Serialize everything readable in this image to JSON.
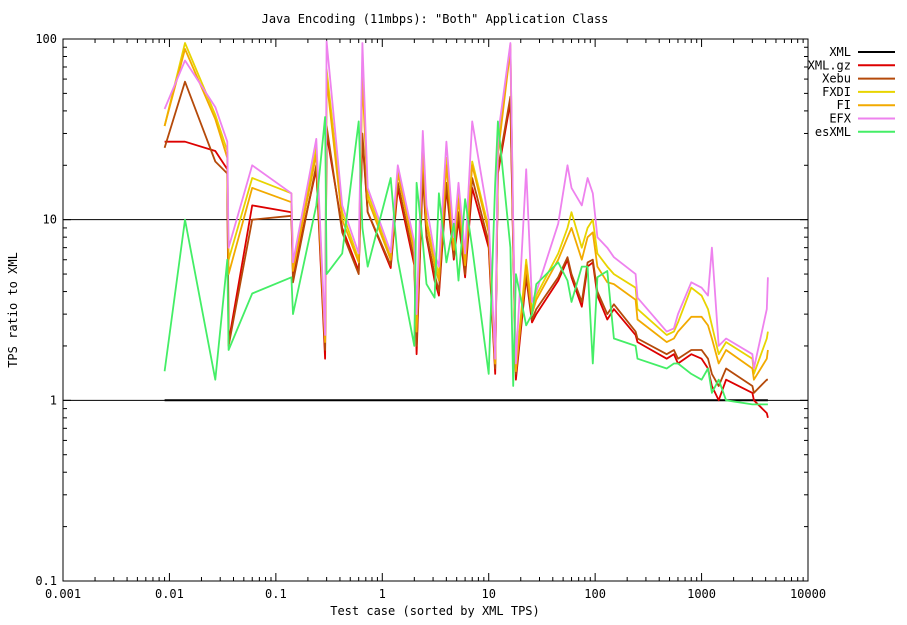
{
  "chart_data": {
    "type": "line",
    "title": "Java Encoding (11mbps): \"Both\" Application Class",
    "xlabel": "Test case (sorted by XML TPS)",
    "ylabel": "TPS ratio to XML",
    "xscale": "log",
    "yscale": "log",
    "xlim": [
      0.001,
      10000
    ],
    "ylim": [
      0.1,
      100
    ],
    "x_ticks": [
      0.001,
      0.01,
      0.1,
      1,
      10,
      100,
      1000,
      10000
    ],
    "x_tick_labels": [
      "0.001",
      "0.01",
      "0.1",
      "1",
      "10",
      "100",
      "1000",
      "10000"
    ],
    "y_ticks": [
      0.1,
      1,
      10,
      100
    ],
    "y_tick_labels": [
      "0.1",
      "1",
      "10",
      "100"
    ],
    "reference_lines_y": [
      1,
      10
    ],
    "legend_position": "outside-right",
    "x": [
      0.009,
      0.014,
      0.027,
      0.035,
      0.036,
      0.06,
      0.14,
      0.145,
      0.24,
      0.29,
      0.3,
      0.42,
      0.6,
      0.65,
      0.73,
      1.2,
      1.4,
      2.0,
      2.1,
      2.4,
      2.6,
      3.1,
      3.4,
      4.0,
      4.7,
      5.2,
      6.0,
      7.0,
      10,
      11.5,
      12.2,
      16,
      17,
      18,
      22.5,
      25.5,
      28,
      45,
      55,
      60,
      75,
      85,
      95,
      105,
      130,
      150,
      240,
      250,
      470,
      550,
      600,
      800,
      1000,
      1150,
      1250,
      1450,
      1700,
      3000,
      3100,
      4100,
      4200
    ],
    "series": [
      {
        "name": "XML",
        "color": "#000000",
        "values": [
          1,
          1,
          1,
          1,
          1,
          1,
          1,
          1,
          1,
          1,
          1,
          1,
          1,
          1,
          1,
          1,
          1,
          1,
          1,
          1,
          1,
          1,
          1,
          1,
          1,
          1,
          1,
          1,
          1,
          1,
          1,
          1,
          1,
          1,
          1,
          1,
          1,
          1,
          1,
          1,
          1,
          1,
          1,
          1,
          1,
          1,
          1,
          1,
          1,
          1,
          1,
          1,
          1,
          1,
          1,
          1,
          1,
          1,
          1,
          1,
          1
        ]
      },
      {
        "name": "XML.gz",
        "color": "#dd0000",
        "values": [
          27,
          27,
          24,
          19,
          2.1,
          12,
          11,
          5,
          19,
          1.7,
          30,
          9,
          5.2,
          28,
          11,
          5.4,
          15,
          5.6,
          1.8,
          18,
          8,
          4.6,
          3.8,
          15,
          6,
          10,
          4.8,
          15,
          7,
          1.4,
          18,
          45,
          7,
          1.3,
          4.8,
          2.7,
          3,
          4.6,
          6,
          4.8,
          3.3,
          5.5,
          5.8,
          3.8,
          2.8,
          3.2,
          2.3,
          2.1,
          1.7,
          1.8,
          1.6,
          1.8,
          1.7,
          1.5,
          1.2,
          1.0,
          1.3,
          1.1,
          1.0,
          0.85,
          0.8
        ]
      },
      {
        "name": "Xebu",
        "color": "#b54a0a",
        "values": [
          25,
          58,
          21,
          18,
          2.0,
          10,
          10.5,
          4.5,
          20,
          1.9,
          33,
          8.5,
          5,
          30,
          11,
          5.6,
          16,
          6,
          2.0,
          19,
          8.3,
          5,
          4,
          16,
          6.2,
          11,
          5,
          17,
          7.5,
          1.5,
          19,
          48,
          7.5,
          1.4,
          5,
          2.8,
          3.2,
          4.8,
          6.2,
          5,
          3.5,
          5.8,
          6,
          4,
          3,
          3.4,
          2.4,
          2.2,
          1.8,
          1.9,
          1.7,
          1.9,
          1.9,
          1.7,
          1.4,
          1.2,
          1.5,
          1.2,
          1.1,
          1.3,
          1.3
        ]
      },
      {
        "name": "FXDI",
        "color": "#e8d400",
        "values": [
          33,
          95,
          38,
          24,
          6,
          17,
          14,
          5.5,
          25,
          2.2,
          68,
          11,
          6,
          68,
          14,
          6.2,
          19,
          7,
          2.6,
          28,
          10,
          6,
          5,
          22,
          7,
          14,
          6,
          21,
          9,
          1.6,
          25,
          93,
          9,
          1.5,
          6,
          3.2,
          3.8,
          6.5,
          9,
          11,
          7,
          9,
          10,
          6.5,
          5.5,
          5,
          4.2,
          3.2,
          2.3,
          2.4,
          2.7,
          4.2,
          3.8,
          3.2,
          2.6,
          1.8,
          2.1,
          1.7,
          1.4,
          2.2,
          2.4
        ]
      },
      {
        "name": "FI",
        "color": "#f2aa00",
        "values": [
          33,
          88,
          36,
          22,
          5,
          15,
          12.5,
          5.2,
          23,
          2.1,
          60,
          10,
          5.8,
          62,
          13,
          6,
          18,
          6.6,
          2.4,
          25,
          9.5,
          5.6,
          4.6,
          20,
          6.8,
          13,
          5.6,
          20,
          8.5,
          1.6,
          23,
          88,
          8.5,
          1.45,
          5.6,
          3,
          3.6,
          6,
          8,
          9,
          6,
          8,
          8.5,
          5.5,
          4.5,
          4.4,
          3.6,
          2.8,
          2.1,
          2.2,
          2.4,
          2.9,
          2.9,
          2.6,
          2.2,
          1.6,
          1.9,
          1.5,
          1.3,
          1.7,
          1.9
        ]
      },
      {
        "name": "EFX",
        "color": "#ee82ee",
        "values": [
          41,
          76,
          42,
          27,
          7,
          20,
          14,
          5.8,
          28,
          2.3,
          97,
          12,
          6.5,
          95,
          15,
          6.6,
          20,
          7.5,
          3,
          31,
          12,
          6.5,
          5.5,
          27,
          8,
          16,
          6.5,
          35,
          10,
          1.7,
          29,
          95,
          10,
          1.6,
          19,
          3.5,
          4,
          9.5,
          20,
          15,
          12,
          17,
          14,
          8,
          7,
          6.2,
          5,
          3.7,
          2.4,
          2.5,
          3,
          4.5,
          4.2,
          3.8,
          7,
          2,
          2.2,
          1.8,
          1.5,
          3.2,
          4.8
        ]
      },
      {
        "name": "esXML",
        "color": "#44ee66",
        "values": [
          1.45,
          10,
          1.3,
          6,
          1.9,
          3.9,
          4.8,
          3,
          12,
          37,
          5,
          6.5,
          35,
          9,
          5.5,
          17,
          6,
          2.0,
          16,
          7.5,
          4.4,
          3.7,
          14,
          5.8,
          9.5,
          4.6,
          13,
          7,
          1.4,
          16,
          35,
          7,
          1.2,
          5,
          2.6,
          3,
          4.4,
          5.8,
          4.6,
          3.5,
          5.5,
          5.5,
          1.6,
          4.8,
          5.2,
          2.2,
          2.0,
          1.7,
          1.5,
          1.6,
          1.6,
          1.4,
          1.3,
          1.5,
          1.1,
          1.3,
          1.0,
          0.95,
          0.95,
          0.95,
          0.95
        ]
      }
    ]
  }
}
